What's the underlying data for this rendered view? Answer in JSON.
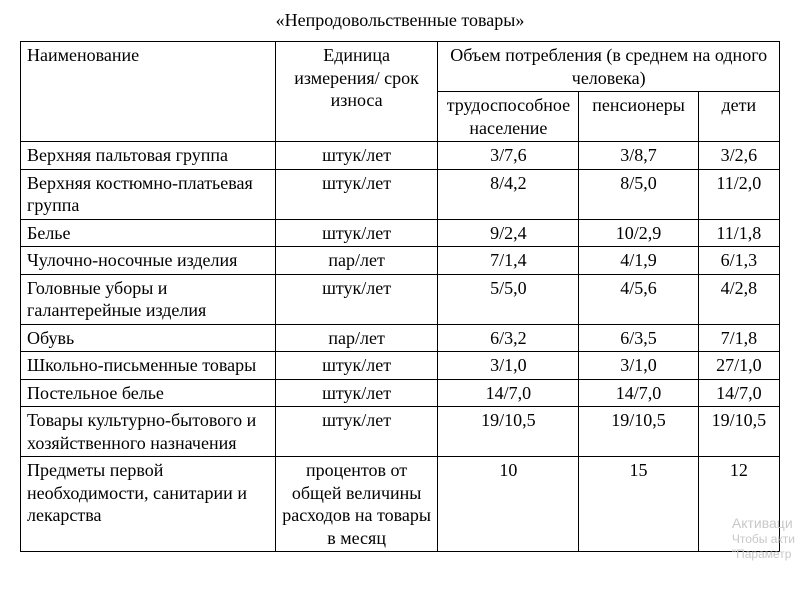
{
  "title": "«Непродовольственные товары»",
  "table": {
    "header": {
      "name": "Наименование",
      "unit": "Единица измерения/ срок износа",
      "consumption_group": "Объем потребления (в среднем на одного человека)",
      "col_workers": "трудоспособное население",
      "col_pensioners": "пенсионеры",
      "col_children": "дети"
    },
    "rows": [
      {
        "name": "Верхняя пальтовая группа",
        "unit": "штук/лет",
        "v1": "3/7,6",
        "v2": "3/8,7",
        "v3": "3/2,6"
      },
      {
        "name": "Верхняя костюмно-платьевая группа",
        "unit": "штук/лет",
        "v1": "8/4,2",
        "v2": "8/5,0",
        "v3": "11/2,0"
      },
      {
        "name": "Белье",
        "unit": "штук/лет",
        "v1": "9/2,4",
        "v2": "10/2,9",
        "v3": "11/1,8"
      },
      {
        "name": "Чулочно-носочные изделия",
        "unit": "пар/лет",
        "v1": "7/1,4",
        "v2": "4/1,9",
        "v3": "6/1,3"
      },
      {
        "name": "Головные уборы и галантерейные изделия",
        "unit": "штук/лет",
        "v1": "5/5,0",
        "v2": "4/5,6",
        "v3": "4/2,8"
      },
      {
        "name": "Обувь",
        "unit": "пар/лет",
        "v1": "6/3,2",
        "v2": "6/3,5",
        "v3": "7/1,8"
      },
      {
        "name": "Школьно-письменные товары",
        "unit": "штук/лет",
        "v1": "3/1,0",
        "v2": "3/1,0",
        "v3": "27/1,0"
      },
      {
        "name": "Постельное белье",
        "unit": "штук/лет",
        "v1": "14/7,0",
        "v2": "14/7,0",
        "v3": "14/7,0"
      },
      {
        "name": "Товары культурно-бытового и хозяйственного назначения",
        "unit": "штук/лет",
        "v1": "19/10,5",
        "v2": "19/10,5",
        "v3": "19/10,5"
      },
      {
        "name": "Предметы первой необходимости, санитарии и лекарства",
        "unit": "процентов от общей величины расходов на товары в месяц",
        "v1": "10",
        "v2": "15",
        "v3": "12"
      }
    ]
  },
  "watermark": {
    "line1": "Активаци",
    "line2": "Чтобы акти",
    "line3": "\"Параметр"
  }
}
